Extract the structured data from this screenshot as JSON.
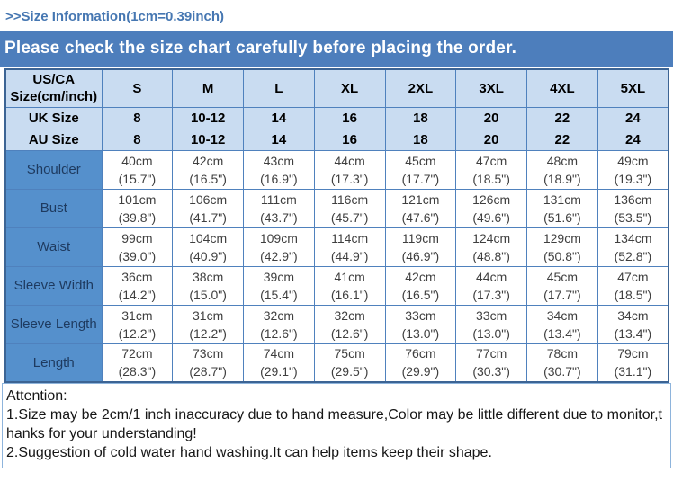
{
  "page": {
    "title": ">>Size Information(1cm=0.39inch)",
    "banner": "Please check the size chart carefully before placing the order."
  },
  "size_chart": {
    "corner_line1": "US/CA",
    "corner_line2": "Size(cm/inch)",
    "sizes": [
      "S",
      "M",
      "L",
      "XL",
      "2XL",
      "3XL",
      "4XL",
      "5XL"
    ],
    "uk_label": "UK Size",
    "uk_values": [
      "8",
      "10-12",
      "14",
      "16",
      "18",
      "20",
      "22",
      "24"
    ],
    "au_label": "AU Size",
    "au_values": [
      "8",
      "10-12",
      "14",
      "16",
      "18",
      "20",
      "22",
      "24"
    ],
    "measurements": [
      {
        "label": "Shoulder",
        "cm": [
          "40cm",
          "42cm",
          "43cm",
          "44cm",
          "45cm",
          "47cm",
          "48cm",
          "49cm"
        ],
        "inch": [
          "(15.7\")",
          "(16.5\")",
          "(16.9\")",
          "(17.3\")",
          "(17.7\")",
          "(18.5\")",
          "(18.9\")",
          "(19.3\")"
        ]
      },
      {
        "label": "Bust",
        "cm": [
          "101cm",
          "106cm",
          "111cm",
          "116cm",
          "121cm",
          "126cm",
          "131cm",
          "136cm"
        ],
        "inch": [
          "(39.8\")",
          "(41.7\")",
          "(43.7\")",
          "(45.7\")",
          "(47.6\")",
          "(49.6\")",
          "(51.6\")",
          "(53.5\")"
        ]
      },
      {
        "label": "Waist",
        "cm": [
          "99cm",
          "104cm",
          "109cm",
          "114cm",
          "119cm",
          "124cm",
          "129cm",
          "134cm"
        ],
        "inch": [
          "(39.0\")",
          "(40.9\")",
          "(42.9\")",
          "(44.9\")",
          "(46.9\")",
          "(48.8\")",
          "(50.8\")",
          "(52.8\")"
        ]
      },
      {
        "label": "Sleeve Width",
        "cm": [
          "36cm",
          "38cm",
          "39cm",
          "41cm",
          "42cm",
          "44cm",
          "45cm",
          "47cm"
        ],
        "inch": [
          "(14.2\")",
          "(15.0\")",
          "(15.4\")",
          "(16.1\")",
          "(16.5\")",
          "(17.3\")",
          "(17.7\")",
          "(18.5\")"
        ]
      },
      {
        "label": "Sleeve Length",
        "cm": [
          "31cm",
          "31cm",
          "32cm",
          "32cm",
          "33cm",
          "33cm",
          "34cm",
          "34cm"
        ],
        "inch": [
          "(12.2\")",
          "(12.2\")",
          "(12.6\")",
          "(12.6\")",
          "(13.0\")",
          "(13.0\")",
          "(13.4\")",
          "(13.4\")"
        ]
      },
      {
        "label": "Length",
        "cm": [
          "72cm",
          "73cm",
          "74cm",
          "75cm",
          "76cm",
          "77cm",
          "78cm",
          "79cm"
        ],
        "inch": [
          "(28.3\")",
          "(28.7\")",
          "(29.1\")",
          "(29.5\")",
          "(29.9\")",
          "(30.3\")",
          "(30.7\")",
          "(31.1\")"
        ]
      }
    ]
  },
  "attention": {
    "heading": "Attention:",
    "lines": [
      "1.Size may be 2cm/1 inch inaccuracy due to hand measure,Color may be little different due to monitor,t",
      "hanks for your understanding!",
      "2.Suggestion of cold water hand washing.It can help items keep their shape."
    ]
  },
  "colors": {
    "banner_bg": "#4d7ebc",
    "title_text": "#4677b2",
    "header_cell_bg": "#c9dcf1",
    "row_label_bg": "#5590cc",
    "row_label_text": "#1e3a5f",
    "inner_border": "#4f81bd",
    "outer_border": "#3c6494",
    "attention_border": "#8eb4dc"
  }
}
